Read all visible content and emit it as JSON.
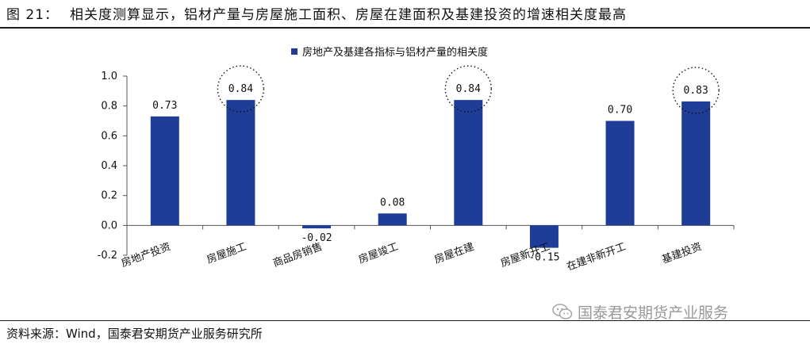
{
  "header": {
    "figure_label": "图 21：",
    "figure_title": "相关度测算显示，铝材产量与房屋施工面积、房屋在建面积及基建投资的增速相关度最高"
  },
  "footer": {
    "source": "资料来源：Wind，国泰君安期货产业服务研究所",
    "watermark": "国泰君安期货产业服务"
  },
  "colors": {
    "bar": "#1f3c96",
    "highlight": "#111111",
    "axis": "#555555"
  },
  "chart_data": {
    "type": "bar",
    "title": "",
    "xlabel": "",
    "ylabel": "",
    "categories": [
      "房地产投资",
      "房屋施工",
      "商品房销售",
      "房屋竣工",
      "房屋在建",
      "房屋新开工",
      "在建非新开工",
      "基建投资"
    ],
    "series": [
      {
        "name": "房地产及基建各指标与铝材产量的相关度",
        "values": [
          0.73,
          0.84,
          -0.02,
          0.08,
          0.84,
          -0.15,
          0.7,
          0.83
        ]
      }
    ],
    "value_labels": [
      "0.73",
      "0.84",
      "-0.02",
      "0.08",
      "0.84",
      "-0.15",
      "0.70",
      "0.83"
    ],
    "ylim": [
      -0.2,
      1.0
    ],
    "yticks": [
      -0.2,
      0.0,
      0.2,
      0.4,
      0.6,
      0.8,
      1.0
    ],
    "ytick_labels": [
      "-0.2",
      "0.0",
      "0.2",
      "0.4",
      "0.6",
      "0.8",
      "1.0"
    ],
    "circled_categories": [
      "房屋施工",
      "房屋在建",
      "基建投资"
    ],
    "grid": false,
    "legend_position": "top"
  }
}
